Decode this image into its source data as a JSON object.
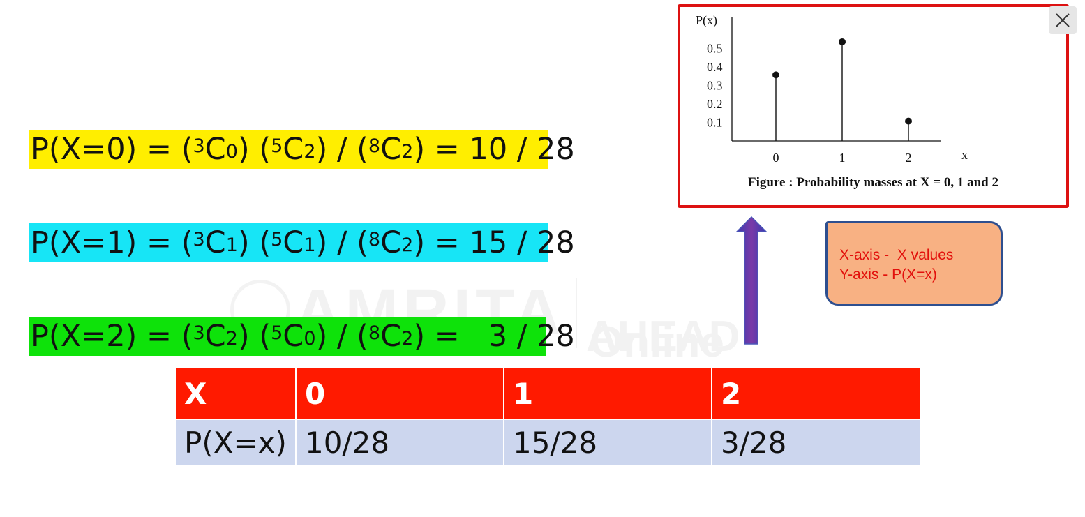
{
  "watermark": {
    "brand": "AMRITA",
    "product_line1": "AHEAD",
    "product_line2": "Online"
  },
  "equations": [
    {
      "parts": {
        "lhs": "P(X=0) = (",
        "c1_sup": "3",
        "c1_c": "C",
        "c1_sub": "0",
        "mid1": ") (",
        "c2_sup": "5",
        "c2_c": "C",
        "c2_sub": "2",
        "mid2": ") / (",
        "c3_sup": "8",
        "c3_c": "C",
        "c3_sub": "2",
        "tail": ") = 10 / 28"
      },
      "color": "#ffee00"
    },
    {
      "parts": {
        "lhs": "P(X=1) = (",
        "c1_sup": "3",
        "c1_c": "C",
        "c1_sub": "1",
        "mid1": ") (",
        "c2_sup": "5",
        "c2_c": "C",
        "c2_sub": "1",
        "mid2": ") / (",
        "c3_sup": "8",
        "c3_c": "C",
        "c3_sub": "2",
        "tail": ") = 15 / 28"
      },
      "color": "#17e5f6"
    },
    {
      "parts": {
        "lhs": "P(X=2) = (",
        "c1_sup": "3",
        "c1_c": "C",
        "c1_sub": "2",
        "mid1": ") (",
        "c2_sup": "5",
        "c2_c": "C",
        "c2_sub": "0",
        "mid2": ") / (",
        "c3_sup": "8",
        "c3_c": "C",
        "c3_sub": "2",
        "tail": ") =   3 / 28"
      },
      "color": "#0ee20a"
    }
  ],
  "table": {
    "header": [
      "X",
      "0",
      "1",
      "2"
    ],
    "row": [
      "P(X=x)",
      "10/28",
      "15/28",
      "3/28"
    ],
    "header_color": "#ff1a00",
    "row_color": "#ccd6ee"
  },
  "figure": {
    "caption": "Figure : Probability masses at X = 0, 1 and 2",
    "border_color": "#dd1111"
  },
  "chart_data": {
    "type": "scatter",
    "style": "stem",
    "x": [
      0,
      1,
      2
    ],
    "y": [
      0.357,
      0.536,
      0.107
    ],
    "xlabel": "x",
    "ylabel": "P(x)",
    "x_ticks": [
      "0",
      "1",
      "2"
    ],
    "y_ticks": [
      "0.1",
      "0.2",
      "0.3",
      "0.4",
      "0.5"
    ],
    "y_tick_values": [
      0.1,
      0.2,
      0.3,
      0.4,
      0.5
    ],
    "xlim": [
      -0.65,
      2.5
    ],
    "ylim": [
      0,
      0.65
    ],
    "grid": false
  },
  "legend_box": {
    "line1": "X-axis -  X values",
    "line2": "Y-axis - P(X=x)",
    "text_color": "#e2100c",
    "fill": "#f8b183"
  },
  "arrow": {
    "color": "#6a3aa6",
    "direction": "up"
  },
  "close_button": {
    "icon": "close-icon"
  }
}
